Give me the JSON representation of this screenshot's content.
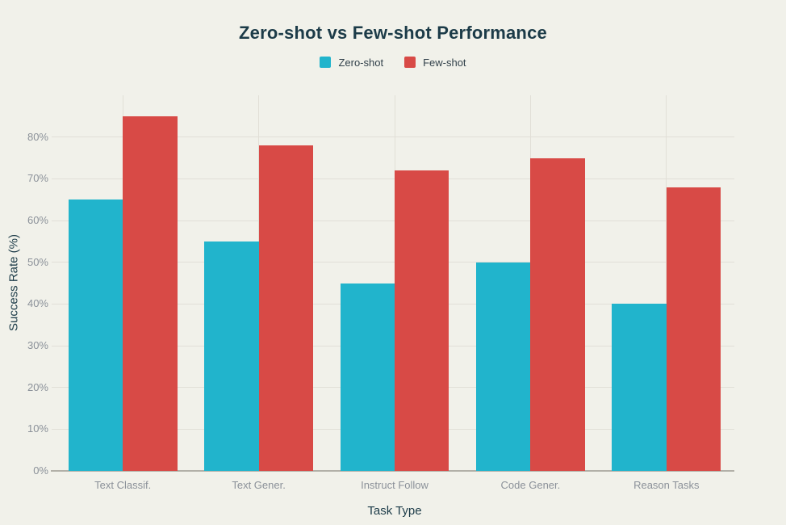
{
  "chart_data": {
    "type": "bar",
    "title": "Zero-shot vs Few-shot Performance",
    "xlabel": "Task Type",
    "ylabel": "Success Rate (%)",
    "categories": [
      "Text Classif.",
      "Text Gener.",
      "Instruct Follow",
      "Code Gener.",
      "Reason Tasks"
    ],
    "series": [
      {
        "name": "Zero-shot",
        "color": "#21b4cc",
        "values": [
          65,
          55,
          45,
          50,
          40
        ]
      },
      {
        "name": "Few-shot",
        "color": "#d84a46",
        "values": [
          85,
          78,
          72,
          75,
          68
        ]
      }
    ],
    "y_ticks": [
      "0%",
      "10%",
      "20%",
      "30%",
      "40%",
      "50%",
      "60%",
      "70%",
      "80%"
    ],
    "y_tick_step": 10,
    "ylim": [
      0,
      90
    ],
    "grid": "on",
    "legend_position": "top"
  },
  "colors": {
    "background": "#f1f1ea",
    "grid_line": "#e1dfd7",
    "axis_line": "#b2b0a8",
    "tick_label_text": "#8b9199",
    "title_text": "#1c3b48",
    "legend_text": "#31404a",
    "zero_shot": "#21b4cc",
    "few_shot": "#d84a46"
  }
}
